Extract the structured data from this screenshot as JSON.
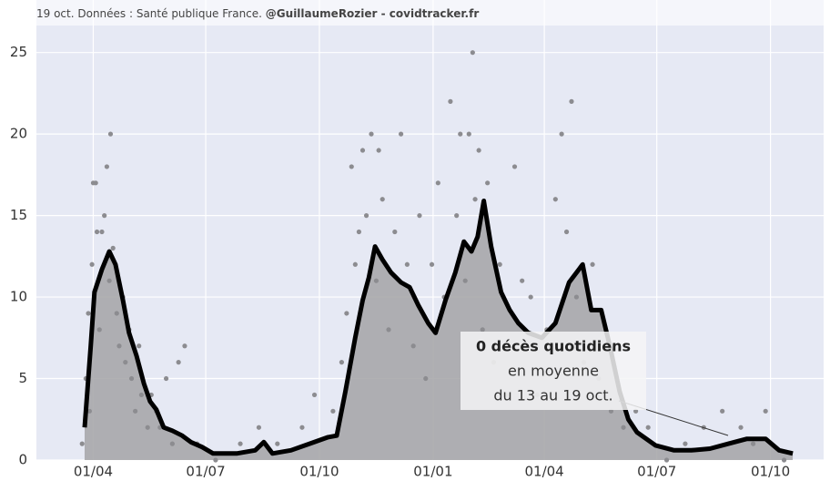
{
  "chart_data": {
    "type": "line",
    "note_top": "19 oct. Données : Santé publique France.",
    "note_top_bold": "@GuillaumeRozier - covidtracker.fr",
    "annotation": {
      "title": "0 décès quotidiens",
      "line1": "en moyenne",
      "line2": "du 13 au 19 oct."
    },
    "background": "#e6e9f4",
    "grid": true,
    "xlim": [
      -15,
      622
    ],
    "ylim": [
      0,
      28
    ],
    "xticks": [
      {
        "value": 31,
        "label": "01/04"
      },
      {
        "value": 122,
        "label": "01/07"
      },
      {
        "value": 214,
        "label": "01/10"
      },
      {
        "value": 306,
        "label": "01/01"
      },
      {
        "value": 396,
        "label": "01/04"
      },
      {
        "value": 487,
        "label": "01/07"
      },
      {
        "value": 579,
        "label": "01/10"
      }
    ],
    "yticks": [
      0,
      5,
      10,
      15,
      20,
      25
    ],
    "series": [
      {
        "type": "line",
        "color": "#000000",
        "fill": "#a3a3a6",
        "x": [
          24,
          29,
          32,
          38,
          44,
          49,
          55,
          60,
          66,
          72,
          77,
          82,
          88,
          95,
          103,
          110,
          119,
          128,
          147,
          162,
          169,
          176,
          191,
          206,
          221,
          228,
          235,
          243,
          249,
          254,
          259,
          265,
          272,
          280,
          287,
          294,
          302,
          308,
          316,
          324,
          331,
          337,
          342,
          347,
          353,
          361,
          368,
          375,
          383,
          394,
          405,
          416,
          427,
          434,
          442,
          449,
          457,
          464,
          471,
          486,
          501,
          515,
          530,
          545,
          560,
          575,
          586,
          597
        ],
        "values": [
          2,
          7,
          10.3,
          11.7,
          12.8,
          12,
          9.8,
          7.8,
          6.4,
          4.7,
          3.6,
          3.1,
          2,
          1.8,
          1.5,
          1.1,
          0.8,
          0.4,
          0.4,
          0.6,
          1.1,
          0.4,
          0.6,
          1,
          1.4,
          1.5,
          4.2,
          7.5,
          9.8,
          11.2,
          13.1,
          12.3,
          11.5,
          10.9,
          10.6,
          9.5,
          8.4,
          7.8,
          9.8,
          11.5,
          13.4,
          12.8,
          13.7,
          15.9,
          13.1,
          10.3,
          9.2,
          8.4,
          7.8,
          7.5,
          8.4,
          10.9,
          12,
          9.2,
          9.2,
          7,
          4.2,
          2.5,
          1.7,
          0.9,
          0.6,
          0.6,
          0.7,
          1,
          1.3,
          1.3,
          0.6,
          0.4
        ]
      },
      {
        "type": "scatter",
        "color": "#8c8c90",
        "x": [
          22,
          25,
          27,
          28,
          30,
          31,
          33,
          34,
          36,
          38,
          40,
          42,
          45,
          44,
          47,
          50,
          52,
          55,
          57,
          60,
          62,
          65,
          68,
          70,
          75,
          78,
          82,
          85,
          90,
          95,
          100,
          105,
          115,
          130,
          150,
          165,
          180,
          200,
          210,
          225,
          232,
          236,
          240,
          243,
          246,
          249,
          252,
          256,
          260,
          262,
          265,
          270,
          275,
          280,
          285,
          290,
          295,
          300,
          305,
          310,
          315,
          320,
          325,
          328,
          332,
          335,
          338,
          340,
          343,
          346,
          350,
          355,
          360,
          365,
          372,
          378,
          385,
          390,
          398,
          405,
          410,
          414,
          418,
          422,
          428,
          435,
          440,
          450,
          460,
          470,
          480,
          495,
          510,
          525,
          540,
          555,
          565,
          575,
          590
        ],
        "values": [
          1,
          5,
          9,
          3,
          12,
          17,
          17,
          14,
          8,
          14,
          15,
          18,
          20,
          11,
          13,
          9,
          7,
          10,
          6,
          8,
          5,
          3,
          7,
          4,
          2,
          4,
          3,
          2,
          5,
          1,
          6,
          7,
          1,
          0,
          1,
          2,
          1,
          2,
          4,
          3,
          6,
          9,
          18,
          12,
          14,
          19,
          15,
          20,
          11,
          19,
          16,
          8,
          14,
          20,
          12,
          7,
          15,
          5,
          12,
          17,
          10,
          22,
          15,
          20,
          11,
          20,
          25,
          16,
          19,
          8,
          17,
          6,
          12,
          4,
          18,
          11,
          10,
          4,
          8,
          16,
          20,
          14,
          22,
          10,
          6,
          12,
          5,
          3,
          2,
          3,
          2,
          0,
          1,
          2,
          3,
          2,
          1,
          3,
          0
        ]
      }
    ]
  }
}
